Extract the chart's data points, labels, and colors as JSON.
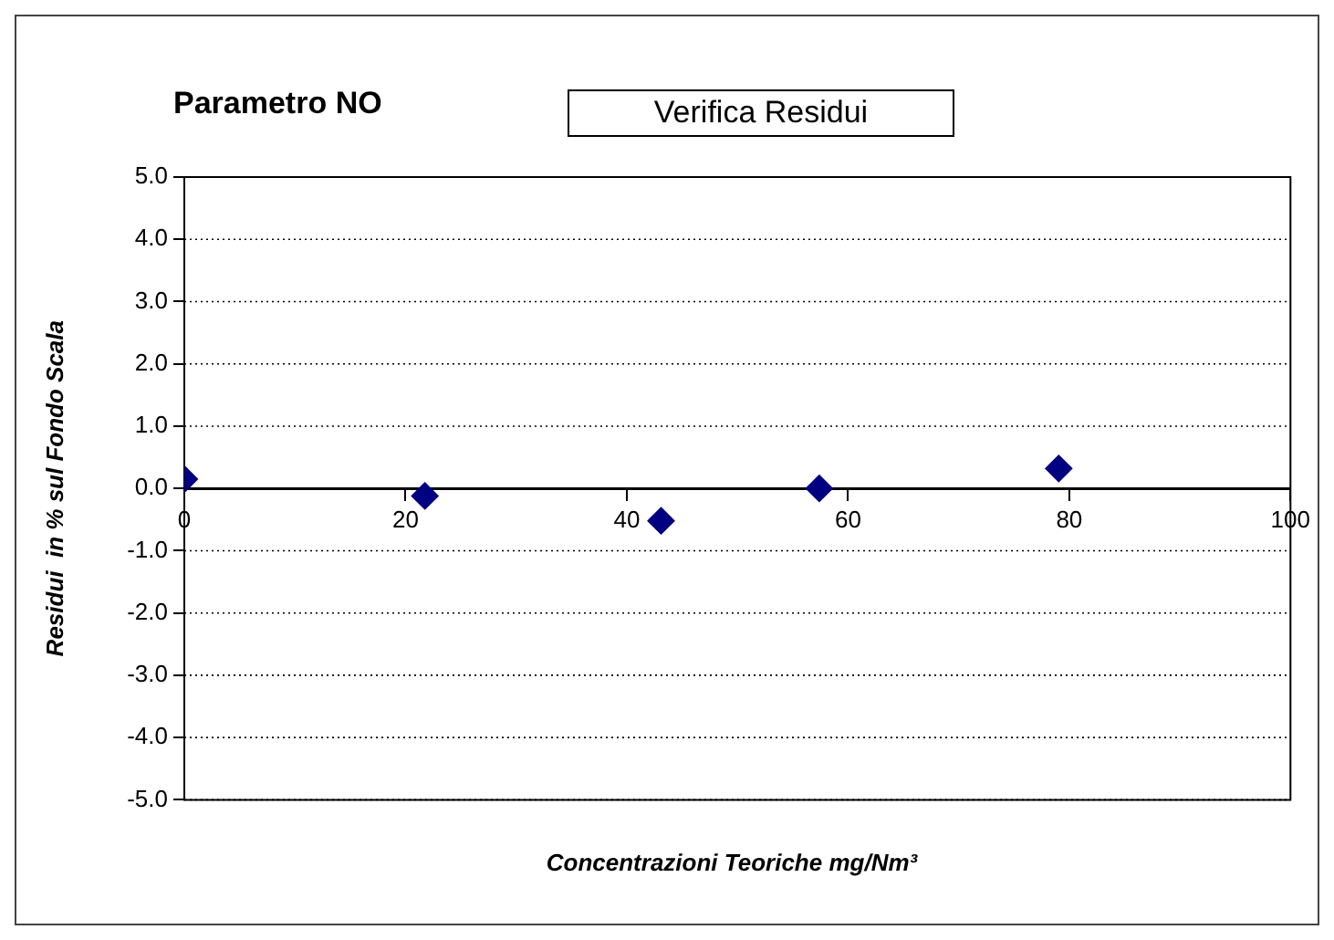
{
  "chart_data": {
    "type": "scatter",
    "title": "Parametro NO",
    "annotations": [
      "Verifica Residui"
    ],
    "xlabel": "Concentrazioni Teoriche mg/Nm³",
    "ylabel": "Residui  in % sul Fondo Scala",
    "series": [
      {
        "color": "#000080",
        "x": [
          0,
          21.75,
          43.1,
          57.4,
          79.05
        ],
        "values": [
          0.15,
          -0.12,
          -0.52,
          0,
          0.32
        ]
      }
    ],
    "xlim": [
      0,
      100
    ],
    "xticks": [
      0,
      20,
      40,
      60,
      80,
      100
    ],
    "ylim": [
      -5,
      5
    ],
    "yticks": [
      {
        "value": -5,
        "label": "-5.0"
      },
      {
        "value": -4,
        "label": "-4.0"
      },
      {
        "value": -3,
        "label": "-3.0"
      },
      {
        "value": -2,
        "label": "-2.0"
      },
      {
        "value": -1,
        "label": "-1.0"
      },
      {
        "value": 0,
        "label": "0.0"
      },
      {
        "value": 1,
        "label": "1.0"
      },
      {
        "value": 2,
        "label": "2.0"
      },
      {
        "value": 3,
        "label": "3.0"
      },
      {
        "value": 4,
        "label": "4.0"
      },
      {
        "value": 5,
        "label": "5.0"
      }
    ],
    "grid": "y",
    "marker": "diamond",
    "legend": false
  }
}
